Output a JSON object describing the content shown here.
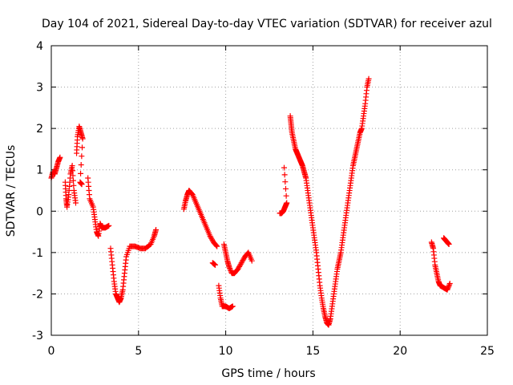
{
  "chart_data": {
    "type": "scatter",
    "title": "Day 104 of 2021, Sidereal Day-to-day VTEC variation (SDTVAR) for receiver azul",
    "xlabel": "GPS time / hours",
    "ylabel": "SDTVAR / TECUs",
    "xlim": [
      0,
      25
    ],
    "ylim": [
      -3,
      4
    ],
    "x_ticks": [
      0,
      5,
      10,
      15,
      20,
      25
    ],
    "y_ticks": [
      -3,
      -2,
      -1,
      0,
      1,
      2,
      3,
      4
    ],
    "grid": true,
    "marker": "plus",
    "series": [
      {
        "name": "SDTVAR",
        "color": "#ff0000",
        "segments": [
          [
            [
              0.0,
              0.8
            ],
            [
              0.1,
              0.95
            ],
            [
              0.2,
              0.9
            ],
            [
              0.3,
              1.05
            ],
            [
              0.4,
              1.2
            ],
            [
              0.5,
              1.3
            ]
          ],
          [
            [
              0.8,
              0.7
            ],
            [
              0.85,
              0.3
            ],
            [
              0.9,
              0.1
            ],
            [
              1.0,
              0.4
            ],
            [
              1.1,
              0.9
            ],
            [
              1.2,
              1.1
            ],
            [
              1.3,
              0.5
            ],
            [
              1.4,
              0.2
            ]
          ],
          [
            [
              1.45,
              1.4
            ],
            [
              1.5,
              1.8
            ],
            [
              1.6,
              2.05
            ],
            [
              1.7,
              1.9
            ],
            [
              1.8,
              1.75
            ],
            [
              1.65,
              0.7
            ],
            [
              1.75,
              0.65
            ]
          ],
          [
            [
              2.1,
              0.8
            ],
            [
              2.2,
              0.3
            ],
            [
              2.4,
              0.1
            ],
            [
              2.5,
              -0.2
            ],
            [
              2.6,
              -0.5
            ],
            [
              2.7,
              -0.6
            ],
            [
              2.8,
              -0.3
            ],
            [
              2.9,
              -0.4
            ],
            [
              3.1,
              -0.4
            ],
            [
              3.3,
              -0.35
            ]
          ],
          [
            [
              3.4,
              -0.9
            ],
            [
              3.5,
              -1.3
            ],
            [
              3.6,
              -1.7
            ],
            [
              3.7,
              -2.0
            ],
            [
              3.8,
              -2.1
            ],
            [
              3.9,
              -2.2
            ],
            [
              4.0,
              -2.1
            ],
            [
              4.1,
              -1.9
            ],
            [
              4.2,
              -1.5
            ],
            [
              4.3,
              -1.1
            ],
            [
              4.5,
              -0.85
            ],
            [
              4.8,
              -0.85
            ],
            [
              5.1,
              -0.9
            ],
            [
              5.4,
              -0.9
            ],
            [
              5.7,
              -0.8
            ],
            [
              5.9,
              -0.6
            ],
            [
              6.0,
              -0.45
            ]
          ],
          [
            [
              7.6,
              0.05
            ],
            [
              7.7,
              0.25
            ],
            [
              7.8,
              0.4
            ],
            [
              7.9,
              0.5
            ],
            [
              8.1,
              0.4
            ],
            [
              8.3,
              0.2
            ],
            [
              8.5,
              0.0
            ],
            [
              8.7,
              -0.2
            ],
            [
              8.9,
              -0.4
            ],
            [
              9.1,
              -0.6
            ],
            [
              9.3,
              -0.75
            ],
            [
              9.5,
              -0.85
            ]
          ],
          [
            [
              9.25,
              -1.25
            ],
            [
              9.4,
              -1.3
            ]
          ],
          [
            [
              9.6,
              -1.8
            ],
            [
              9.7,
              -2.1
            ],
            [
              9.8,
              -2.3
            ],
            [
              10.0,
              -2.3
            ],
            [
              10.2,
              -2.35
            ],
            [
              10.4,
              -2.3
            ]
          ],
          [
            [
              9.9,
              -0.8
            ],
            [
              10.0,
              -1.0
            ],
            [
              10.1,
              -1.2
            ],
            [
              10.2,
              -1.35
            ],
            [
              10.35,
              -1.5
            ],
            [
              10.5,
              -1.5
            ],
            [
              10.7,
              -1.4
            ],
            [
              10.9,
              -1.25
            ],
            [
              11.1,
              -1.1
            ],
            [
              11.3,
              -1.0
            ],
            [
              11.5,
              -1.2
            ]
          ],
          [
            [
              13.1,
              -0.05
            ],
            [
              13.2,
              -0.05
            ],
            [
              13.3,
              0.0
            ],
            [
              13.4,
              0.1
            ],
            [
              13.5,
              0.2
            ],
            [
              13.35,
              1.05
            ]
          ],
          [
            [
              13.7,
              2.3
            ],
            [
              13.75,
              2.1
            ],
            [
              13.8,
              1.9
            ],
            [
              13.9,
              1.7
            ],
            [
              14.0,
              1.5
            ],
            [
              14.1,
              1.4
            ],
            [
              14.2,
              1.3
            ],
            [
              14.3,
              1.2
            ],
            [
              14.4,
              1.1
            ],
            [
              14.5,
              0.95
            ],
            [
              14.6,
              0.8
            ],
            [
              14.7,
              0.5
            ],
            [
              14.8,
              0.2
            ],
            [
              14.9,
              -0.1
            ],
            [
              15.0,
              -0.4
            ],
            [
              15.1,
              -0.7
            ],
            [
              15.2,
              -1.0
            ],
            [
              15.3,
              -1.4
            ],
            [
              15.4,
              -1.8
            ],
            [
              15.5,
              -2.1
            ],
            [
              15.6,
              -2.35
            ],
            [
              15.7,
              -2.55
            ],
            [
              15.8,
              -2.7
            ],
            [
              15.9,
              -2.75
            ],
            [
              16.0,
              -2.6
            ],
            [
              16.1,
              -2.3
            ],
            [
              16.2,
              -2.0
            ],
            [
              16.3,
              -1.7
            ],
            [
              16.4,
              -1.4
            ],
            [
              16.5,
              -1.2
            ],
            [
              16.6,
              -1.0
            ],
            [
              16.7,
              -0.7
            ],
            [
              16.8,
              -0.4
            ],
            [
              16.9,
              -0.1
            ],
            [
              17.0,
              0.2
            ],
            [
              17.1,
              0.5
            ],
            [
              17.2,
              0.8
            ],
            [
              17.3,
              1.1
            ],
            [
              17.4,
              1.3
            ],
            [
              17.5,
              1.5
            ],
            [
              17.6,
              1.7
            ],
            [
              17.7,
              1.9
            ],
            [
              17.8,
              2.0
            ],
            [
              17.9,
              2.3
            ],
            [
              18.0,
              2.6
            ],
            [
              18.1,
              3.0
            ],
            [
              18.2,
              3.2
            ]
          ],
          [
            [
              21.8,
              -0.75
            ],
            [
              21.9,
              -0.9
            ],
            [
              22.0,
              -1.3
            ],
            [
              22.1,
              -1.5
            ],
            [
              22.2,
              -1.7
            ],
            [
              22.3,
              -1.8
            ],
            [
              22.5,
              -1.85
            ],
            [
              22.7,
              -1.9
            ],
            [
              22.85,
              -1.75
            ]
          ],
          [
            [
              22.5,
              -0.65
            ],
            [
              22.6,
              -0.7
            ],
            [
              22.7,
              -0.75
            ],
            [
              22.8,
              -0.8
            ]
          ]
        ]
      }
    ]
  }
}
